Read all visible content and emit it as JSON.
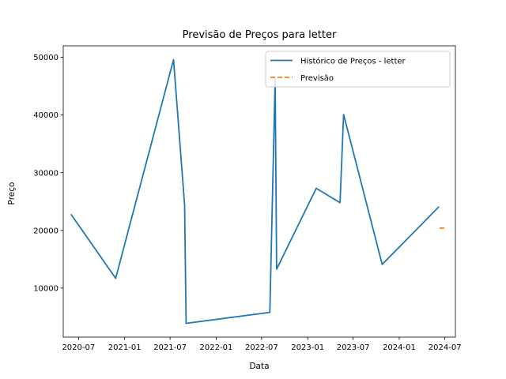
{
  "chart_data": {
    "type": "line",
    "title": "Previsão de Preços para letter",
    "xlabel": "Data",
    "ylabel": "Preço",
    "xlim": [
      "2020-05-01",
      "2024-08-12"
    ],
    "ylim": [
      1500,
      52000
    ],
    "x_ticks": [
      "2020-07",
      "2021-01",
      "2021-07",
      "2022-01",
      "2022-07",
      "2023-01",
      "2023-07",
      "2024-01",
      "2024-07"
    ],
    "y_ticks": [
      10000,
      20000,
      30000,
      40000,
      50000
    ],
    "grid": false,
    "legend_position": "top-right",
    "series": [
      {
        "name": "Histórico de Preços - letter",
        "color": "#1f77b4",
        "style": "solid",
        "x": [
          "2020-06-01",
          "2020-11-26",
          "2021-07-15",
          "2021-08-28",
          "2021-09-03",
          "2022-08-03",
          "2022-08-24",
          "2022-08-30",
          "2023-02-04",
          "2023-05-10",
          "2023-05-24",
          "2023-10-25",
          "2024-06-07"
        ],
        "y": [
          22800,
          11700,
          49600,
          24400,
          3900,
          5800,
          46200,
          13300,
          27300,
          24800,
          40100,
          14100,
          24100
        ]
      },
      {
        "name": "Previsão",
        "color": "#ff7f0e",
        "style": "dashed",
        "x": [
          "2024-06-10",
          "2024-07-05"
        ],
        "y": [
          20400,
          20400
        ]
      }
    ]
  }
}
